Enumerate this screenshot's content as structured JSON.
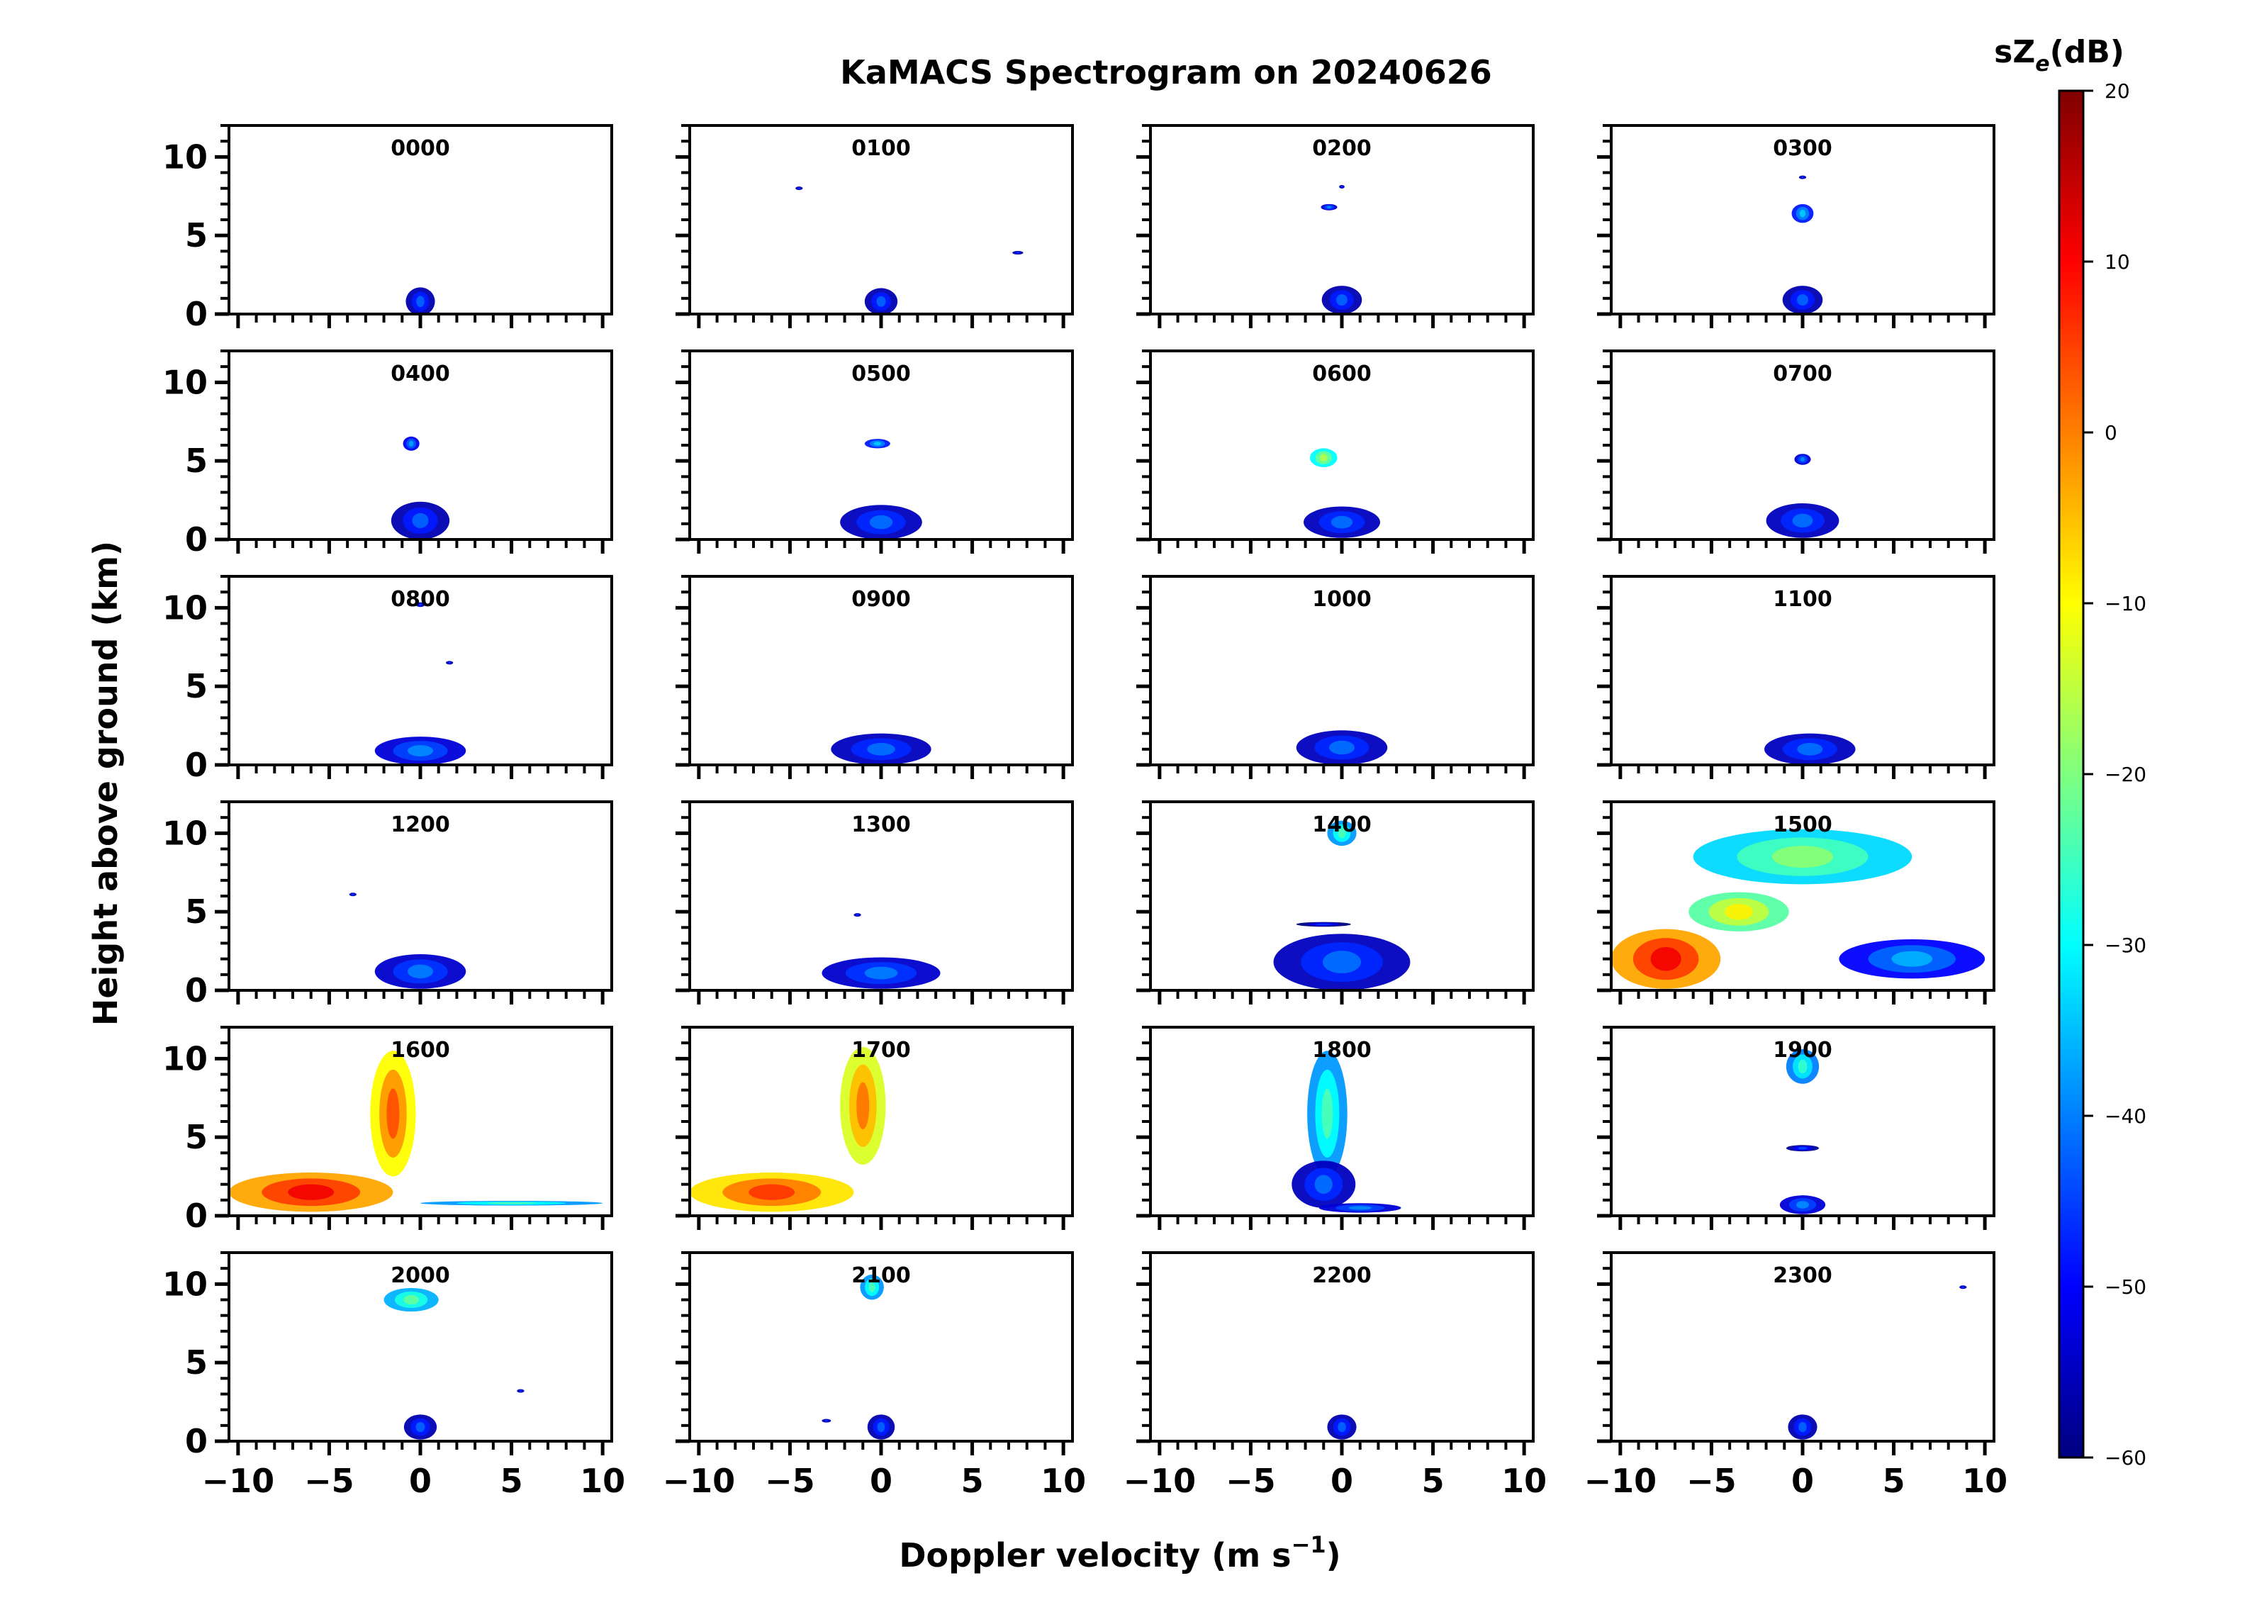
{
  "figure": {
    "title": "KaMACS Spectrogram on 20240626",
    "xlabel": "Doppler velocity (m s",
    "xlabel_sup": "−1",
    "xlabel_close": ")",
    "ylabel": "Height above ground (km)",
    "colorbar_label": "sZ",
    "colorbar_label_sub": "e",
    "colorbar_label_unit": "(dB)"
  },
  "colors": {
    "jet": [
      "#00007f",
      "#0000ff",
      "#007fff",
      "#00ffff",
      "#7fff7f",
      "#ffff00",
      "#ff7f00",
      "#ff0000",
      "#7f0000"
    ]
  },
  "chart_data": {
    "type": "heatmap",
    "title": "KaMACS Spectrogram on 20240626",
    "xlabel": "Doppler velocity (m s−1)",
    "ylabel": "Height above ground (km)",
    "xlim": [
      -10.5,
      10.5
    ],
    "ylim": [
      0,
      12
    ],
    "xticks": [
      -10,
      -5,
      0,
      5,
      10
    ],
    "xtick_labels": [
      "−10",
      "−5",
      "0",
      "5",
      "10"
    ],
    "yticks": [
      0,
      5,
      10
    ],
    "ytick_labels": [
      "0",
      "5",
      "10"
    ],
    "colorbar": {
      "label": "sZe(dB)",
      "range": [
        -60,
        20
      ],
      "ticks": [
        20,
        10,
        0,
        -10,
        -20,
        -30,
        -40,
        -50,
        -60
      ],
      "tick_labels": [
        "20",
        "10",
        "0",
        "−10",
        "−20",
        "−30",
        "−40",
        "−50",
        "−60"
      ]
    },
    "panels": [
      {
        "label": "0000",
        "blobs": [
          {
            "v": 0,
            "h": 0.8,
            "w": 1.6,
            "t": 1.8,
            "dB": -48
          }
        ]
      },
      {
        "label": "0100",
        "blobs": [
          {
            "v": 0,
            "h": 0.8,
            "w": 1.8,
            "t": 1.7,
            "dB": -48
          },
          {
            "v": -4.5,
            "h": 8.0,
            "w": 0.4,
            "t": 0.2,
            "dB": -50
          },
          {
            "v": 7.5,
            "h": 3.9,
            "w": 0.6,
            "t": 0.2,
            "dB": -50
          }
        ]
      },
      {
        "label": "0200",
        "blobs": [
          {
            "v": 0,
            "h": 0.9,
            "w": 2.2,
            "t": 1.8,
            "dB": -48
          },
          {
            "v": -0.7,
            "h": 6.8,
            "w": 0.9,
            "t": 0.4,
            "dB": -45
          },
          {
            "v": 0,
            "h": 8.1,
            "w": 0.3,
            "t": 0.2,
            "dB": -50
          }
        ]
      },
      {
        "label": "0300",
        "blobs": [
          {
            "v": 0,
            "h": 0.9,
            "w": 2.2,
            "t": 1.8,
            "dB": -48
          },
          {
            "v": 0,
            "h": 6.4,
            "w": 1.2,
            "t": 1.2,
            "dB": -40
          },
          {
            "v": 0,
            "h": 8.7,
            "w": 0.4,
            "t": 0.2,
            "dB": -50
          }
        ]
      },
      {
        "label": "0400",
        "blobs": [
          {
            "v": 0,
            "h": 1.2,
            "w": 3.2,
            "t": 2.4,
            "dB": -48
          },
          {
            "v": -0.5,
            "h": 6.1,
            "w": 0.9,
            "t": 0.9,
            "dB": -43
          }
        ]
      },
      {
        "label": "0500",
        "blobs": [
          {
            "v": 0,
            "h": 1.1,
            "w": 4.5,
            "t": 2.2,
            "dB": -47
          },
          {
            "v": -0.2,
            "h": 6.1,
            "w": 1.4,
            "t": 0.6,
            "dB": -40
          }
        ]
      },
      {
        "label": "0600",
        "blobs": [
          {
            "v": 0,
            "h": 1.1,
            "w": 4.2,
            "t": 2.0,
            "dB": -47
          },
          {
            "v": -1.0,
            "h": 5.2,
            "w": 1.5,
            "t": 1.2,
            "dB": -22
          }
        ]
      },
      {
        "label": "0700",
        "blobs": [
          {
            "v": 0,
            "h": 1.2,
            "w": 4.0,
            "t": 2.2,
            "dB": -47
          },
          {
            "v": 0,
            "h": 5.1,
            "w": 0.9,
            "t": 0.7,
            "dB": -45
          }
        ]
      },
      {
        "label": "0800",
        "blobs": [
          {
            "v": 0,
            "h": 0.9,
            "w": 5.0,
            "t": 1.8,
            "dB": -45
          },
          {
            "v": 0,
            "h": 10.2,
            "w": 0.5,
            "t": 0.3,
            "dB": -50
          },
          {
            "v": 1.6,
            "h": 6.5,
            "w": 0.4,
            "t": 0.2,
            "dB": -50
          }
        ]
      },
      {
        "label": "0900",
        "blobs": [
          {
            "v": 0,
            "h": 1.0,
            "w": 5.5,
            "t": 2.0,
            "dB": -47
          }
        ]
      },
      {
        "label": "1000",
        "blobs": [
          {
            "v": 0,
            "h": 1.1,
            "w": 5.0,
            "t": 2.2,
            "dB": -47
          }
        ]
      },
      {
        "label": "1100",
        "blobs": [
          {
            "v": 0.4,
            "h": 1.0,
            "w": 5.0,
            "t": 2.0,
            "dB": -47
          }
        ]
      },
      {
        "label": "1200",
        "blobs": [
          {
            "v": 0,
            "h": 1.2,
            "w": 5.0,
            "t": 2.2,
            "dB": -46
          },
          {
            "v": -3.7,
            "h": 6.1,
            "w": 0.4,
            "t": 0.2,
            "dB": -50
          }
        ]
      },
      {
        "label": "1300",
        "blobs": [
          {
            "v": 0,
            "h": 1.1,
            "w": 6.5,
            "t": 2.0,
            "dB": -46
          },
          {
            "v": -1.3,
            "h": 4.8,
            "w": 0.4,
            "t": 0.2,
            "dB": -50
          }
        ]
      },
      {
        "label": "1400",
        "blobs": [
          {
            "v": 0,
            "h": 1.8,
            "w": 7.5,
            "t": 3.6,
            "dB": -47
          },
          {
            "v": 0,
            "h": 10.0,
            "w": 1.6,
            "t": 1.6,
            "dB": -30
          },
          {
            "v": -1.0,
            "h": 4.2,
            "w": 3.0,
            "t": 0.3,
            "dB": -52
          }
        ]
      },
      {
        "label": "1500",
        "blobs": [
          {
            "v": -7.5,
            "h": 2.0,
            "w": 6.0,
            "t": 3.8,
            "dB": 5
          },
          {
            "v": -3.5,
            "h": 5.0,
            "w": 5.5,
            "t": 2.5,
            "dB": -15
          },
          {
            "v": 0,
            "h": 8.5,
            "w": 12.0,
            "t": 3.5,
            "dB": -25
          },
          {
            "v": 6.0,
            "h": 2.0,
            "w": 8.0,
            "t": 2.5,
            "dB": -42
          }
        ]
      },
      {
        "label": "1600",
        "blobs": [
          {
            "v": -6.0,
            "h": 1.5,
            "w": 9.0,
            "t": 2.5,
            "dB": 5
          },
          {
            "v": -1.5,
            "h": 6.5,
            "w": 2.5,
            "t": 8.0,
            "dB": -2
          },
          {
            "v": 5.0,
            "h": 0.8,
            "w": 10.0,
            "t": 0.3,
            "dB": -30
          }
        ]
      },
      {
        "label": "1700",
        "blobs": [
          {
            "v": -6.0,
            "h": 1.5,
            "w": 9.0,
            "t": 2.5,
            "dB": 0
          },
          {
            "v": -1.0,
            "h": 7.0,
            "w": 2.5,
            "t": 7.5,
            "dB": -5
          }
        ]
      },
      {
        "label": "1800",
        "blobs": [
          {
            "v": -0.8,
            "h": 6.5,
            "w": 2.2,
            "t": 8.0,
            "dB": -30
          },
          {
            "v": -1.0,
            "h": 2.0,
            "w": 3.5,
            "t": 3.0,
            "dB": -47
          },
          {
            "v": 1.0,
            "h": 0.5,
            "w": 4.5,
            "t": 0.6,
            "dB": -45
          }
        ]
      },
      {
        "label": "1900",
        "blobs": [
          {
            "v": 0,
            "h": 9.5,
            "w": 1.8,
            "t": 2.2,
            "dB": -32
          },
          {
            "v": 0,
            "h": 4.3,
            "w": 1.8,
            "t": 0.4,
            "dB": -50
          },
          {
            "v": 0,
            "h": 0.7,
            "w": 2.5,
            "t": 1.2,
            "dB": -45
          }
        ]
      },
      {
        "label": "2000",
        "blobs": [
          {
            "v": -0.5,
            "h": 9.0,
            "w": 3.0,
            "t": 1.5,
            "dB": -28
          },
          {
            "v": 0,
            "h": 0.9,
            "w": 1.8,
            "t": 1.6,
            "dB": -48
          },
          {
            "v": 5.5,
            "h": 3.2,
            "w": 0.4,
            "t": 0.2,
            "dB": -50
          }
        ]
      },
      {
        "label": "2100",
        "blobs": [
          {
            "v": -0.5,
            "h": 9.8,
            "w": 1.3,
            "t": 1.6,
            "dB": -30
          },
          {
            "v": 0,
            "h": 0.9,
            "w": 1.5,
            "t": 1.6,
            "dB": -48
          },
          {
            "v": -3.0,
            "h": 1.3,
            "w": 0.5,
            "t": 0.2,
            "dB": -50
          }
        ]
      },
      {
        "label": "2200",
        "blobs": [
          {
            "v": 0,
            "h": 0.9,
            "w": 1.6,
            "t": 1.6,
            "dB": -48
          }
        ]
      },
      {
        "label": "2300",
        "blobs": [
          {
            "v": 0,
            "h": 0.9,
            "w": 1.6,
            "t": 1.6,
            "dB": -48
          },
          {
            "v": 8.8,
            "h": 9.8,
            "w": 0.4,
            "t": 0.2,
            "dB": -50
          }
        ]
      }
    ]
  }
}
